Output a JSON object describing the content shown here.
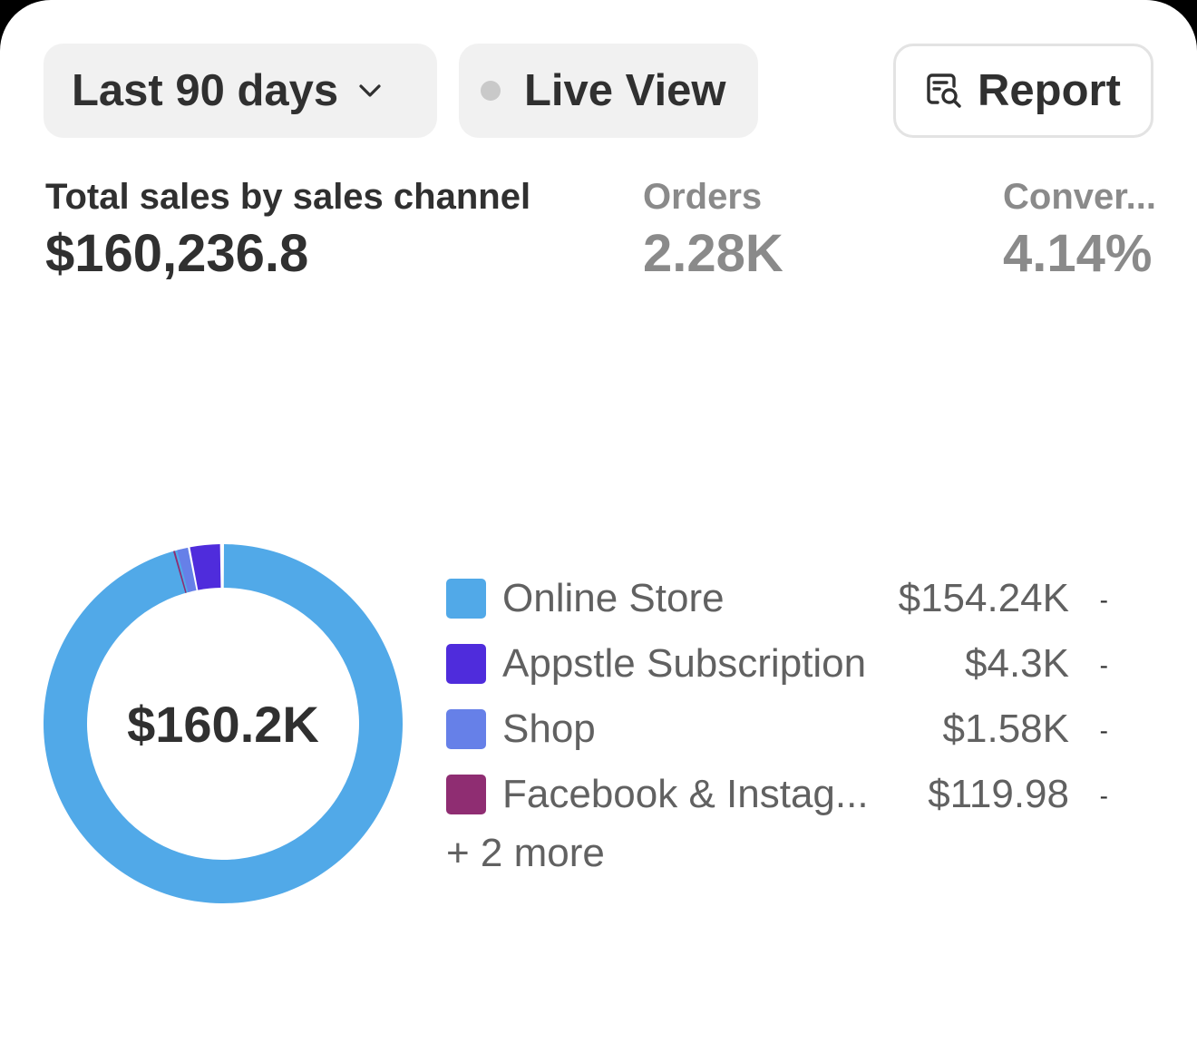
{
  "toolbar": {
    "date_range_label": "Last 90 days",
    "live_view_label": "Live View",
    "report_label": "Report"
  },
  "metrics": {
    "total_sales": {
      "label": "Total sales by sales channel",
      "value": "$160,236.8"
    },
    "orders": {
      "label": "Orders",
      "value": "2.28K"
    },
    "conversion": {
      "label": "Conver...",
      "value": "4.14%"
    }
  },
  "chart_data": {
    "type": "pie",
    "center_label": "$160.2K",
    "categories": [
      "Online Store",
      "Appstle Subscription",
      "Shop",
      "Facebook & Instag..."
    ],
    "values": [
      154240,
      4300,
      1580,
      119.98
    ],
    "display_values": [
      "$154.24K",
      "$4.3K",
      "$1.58K",
      "$119.98"
    ],
    "colors": [
      "#51a9e8",
      "#4f2cdc",
      "#6680e8",
      "#8f2d72"
    ],
    "change_indicators": [
      "-",
      "-",
      "-",
      "-"
    ],
    "more_label": "+ 2 more"
  }
}
